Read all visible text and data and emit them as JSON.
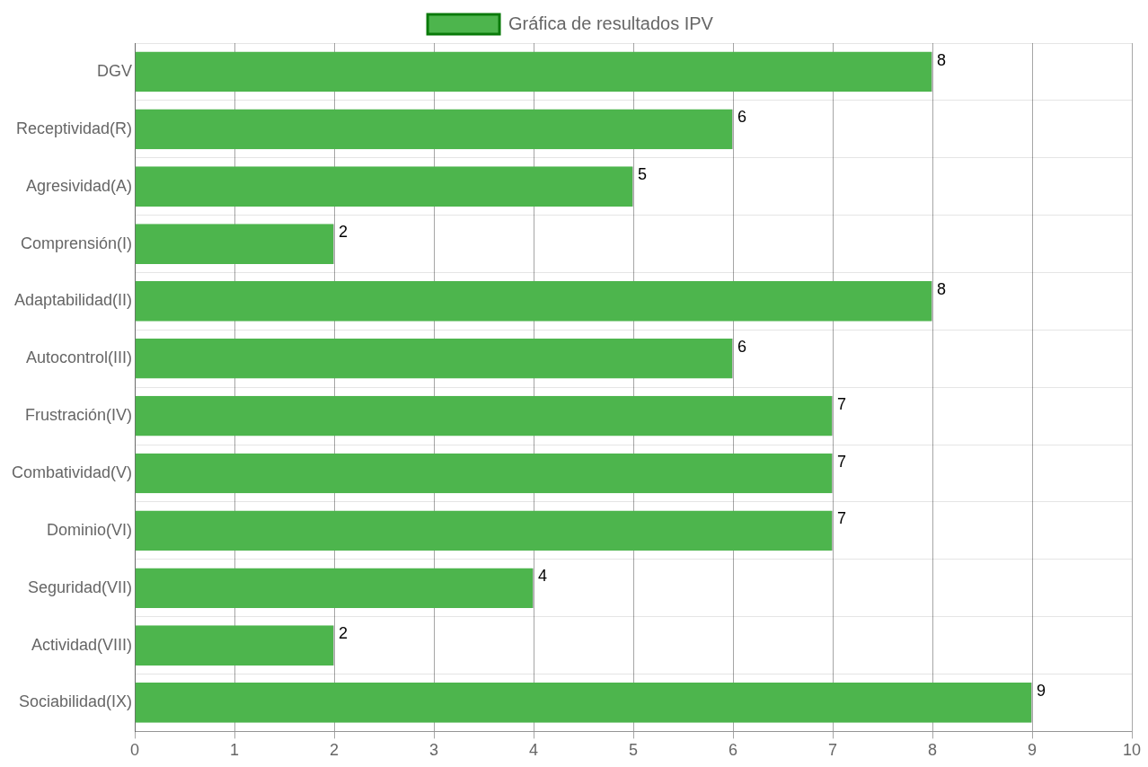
{
  "chart_data": {
    "type": "bar",
    "orientation": "horizontal",
    "categories": [
      "DGV",
      "Receptividad(R)",
      "Agresividad(A)",
      "Comprensión(I)",
      "Adaptabilidad(II)",
      "Autocontrol(III)",
      "Frustración(IV)",
      "Combatividad(V)",
      "Dominio(VI)",
      "Seguridad(VII)",
      "Actividad(VIII)",
      "Sociabilidad(IX)"
    ],
    "series": [
      {
        "name": "Gráfica de resultados IPV",
        "color": "#4db54d",
        "values": [
          8,
          6,
          5,
          2,
          8,
          6,
          7,
          7,
          7,
          4,
          2,
          9
        ]
      }
    ],
    "xlim": [
      0,
      10
    ],
    "xticks": [
      0,
      1,
      2,
      3,
      4,
      5,
      6,
      7,
      8,
      9,
      10
    ],
    "grid": true,
    "legend": "top",
    "data_labels": true
  }
}
